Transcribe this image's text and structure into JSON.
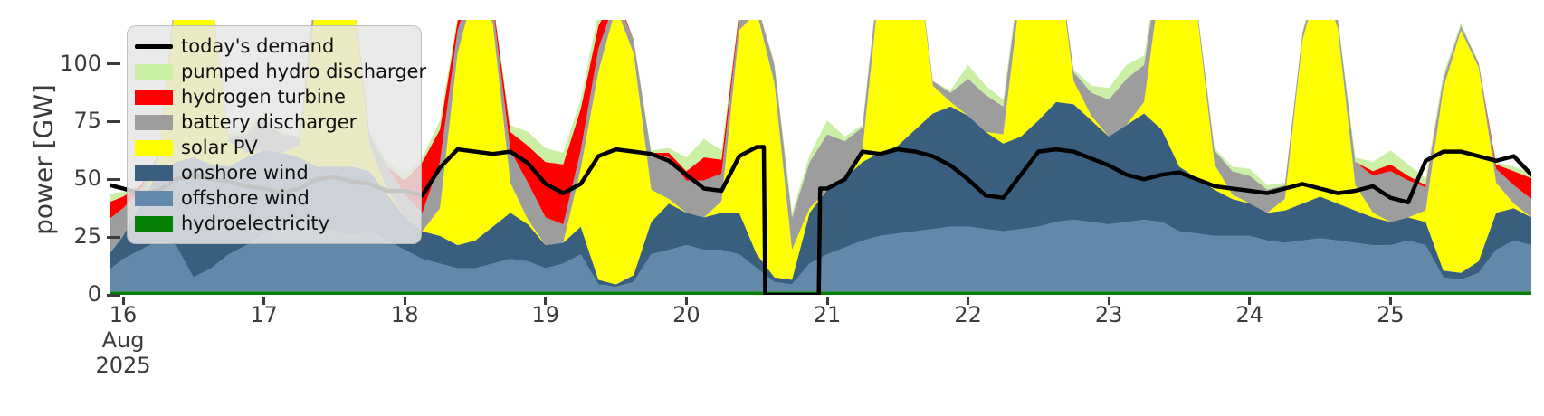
{
  "chart_data": {
    "type": "area",
    "title": "",
    "ylabel": "power [GW]",
    "grid": false,
    "legend_position": "upper left",
    "xlim": [
      15.91,
      26.0
    ],
    "ylim": [
      0,
      119
    ],
    "yticks": [
      0,
      25,
      50,
      75,
      100
    ],
    "xticks": [
      16,
      17,
      18,
      19,
      20,
      21,
      22,
      23,
      24,
      25
    ],
    "xtick_first_sublabels": [
      "Aug",
      "2025"
    ],
    "x": [
      15.875,
      16,
      16.125,
      16.25,
      16.375,
      16.5,
      16.625,
      16.75,
      16.875,
      17,
      17.125,
      17.25,
      17.375,
      17.5,
      17.625,
      17.75,
      17.875,
      18,
      18.125,
      18.25,
      18.375,
      18.5,
      18.625,
      18.75,
      18.875,
      19,
      19.125,
      19.25,
      19.375,
      19.5,
      19.625,
      19.75,
      19.875,
      20,
      20.125,
      20.25,
      20.375,
      20.5,
      20.625,
      20.75,
      20.875,
      21,
      21.125,
      21.25,
      21.375,
      21.5,
      21.625,
      21.75,
      21.875,
      22,
      22.125,
      22.25,
      22.375,
      22.5,
      22.625,
      22.75,
      22.875,
      23,
      23.125,
      23.25,
      23.375,
      23.5,
      23.625,
      23.75,
      23.875,
      24,
      24.125,
      24.25,
      24.375,
      24.5,
      24.625,
      24.75,
      24.875,
      25,
      25.125,
      25.25,
      25.375,
      25.5,
      25.625,
      25.75,
      25.875,
      26
    ],
    "series": [
      {
        "name": "hydroelectricity",
        "color": "#068006",
        "values": [
          1.5,
          1.5,
          1.5,
          1.5,
          1.5,
          1.5,
          1.5,
          1.5,
          1.5,
          1.5,
          1.5,
          1.5,
          1.5,
          1.5,
          1.5,
          1.5,
          1.5,
          1.5,
          1.5,
          1.5,
          1.5,
          1.5,
          1.5,
          1.5,
          1.5,
          1.5,
          1.5,
          1.5,
          1.5,
          1.5,
          1.5,
          1.5,
          1.5,
          1.5,
          1.5,
          1.5,
          1.5,
          1.5,
          1.5,
          1.5,
          1.5,
          1.5,
          1.5,
          1.5,
          1.5,
          1.5,
          1.5,
          1.5,
          1.5,
          1.5,
          1.5,
          1.5,
          1.5,
          1.5,
          1.5,
          1.5,
          1.5,
          1.5,
          1.5,
          1.5,
          1.5,
          1.5,
          1.5,
          1.5,
          1.5,
          1.5,
          1.5,
          1.5,
          1.5,
          1.5,
          1.5,
          1.5,
          1.5,
          1.5,
          1.5,
          1.5,
          1.5,
          1.5,
          1.5,
          1.5,
          1.5,
          1.5
        ]
      },
      {
        "name": "offshore wind",
        "color": "#6389aa",
        "values": [
          8,
          14,
          18,
          22,
          20,
          6,
          10,
          16,
          20,
          25,
          28,
          30,
          28,
          26,
          24,
          26,
          22,
          18,
          14,
          12,
          10,
          10,
          12,
          14,
          13,
          10,
          12,
          16,
          3,
          2,
          4,
          16,
          18,
          20,
          18,
          18,
          16,
          10,
          4,
          3,
          12,
          16,
          19,
          22,
          24,
          25,
          26,
          27,
          28,
          28,
          27,
          26,
          27,
          28,
          30,
          31,
          30,
          29,
          30,
          31,
          30,
          26,
          25,
          24,
          24,
          24,
          22,
          21,
          22,
          23,
          22,
          21,
          20,
          20,
          22,
          20,
          6,
          5,
          8,
          18,
          22,
          20
        ]
      },
      {
        "name": "onshore wind",
        "color": "#3a5f7e",
        "values": [
          6,
          10,
          20,
          30,
          36,
          52,
          45,
          38,
          38,
          36,
          32,
          28,
          26,
          28,
          30,
          26,
          20,
          14,
          12,
          12,
          10,
          12,
          16,
          20,
          16,
          10,
          9,
          12,
          2,
          1,
          3,
          14,
          20,
          14,
          14,
          16,
          18,
          6,
          2,
          2,
          22,
          28,
          30,
          34,
          36,
          38,
          44,
          50,
          52,
          48,
          42,
          38,
          40,
          46,
          52,
          50,
          44,
          38,
          42,
          46,
          40,
          28,
          24,
          20,
          16,
          14,
          12,
          14,
          16,
          18,
          16,
          14,
          12,
          10,
          10,
          10,
          3,
          3,
          5,
          16,
          14,
          12
        ]
      },
      {
        "name": "solar PV",
        "color": "#ffff00",
        "values": [
          0,
          0,
          0,
          5,
          71,
          95,
          76,
          11,
          2,
          0,
          0,
          5,
          75,
          100,
          80,
          12,
          2,
          0,
          0,
          12,
          83,
          110,
          88,
          13,
          2,
          0,
          0,
          25,
          90,
          120,
          96,
          14,
          2,
          0,
          0,
          5,
          79,
          105,
          84,
          13,
          2,
          0,
          0,
          5,
          75,
          100,
          80,
          12,
          2,
          0,
          0,
          4,
          64,
          85,
          68,
          10,
          2,
          0,
          0,
          5,
          68,
          90,
          72,
          11,
          2,
          0,
          0,
          5,
          71,
          95,
          76,
          11,
          2,
          0,
          0,
          5,
          79,
          105,
          84,
          13,
          2,
          0
        ]
      },
      {
        "name": "battery discharger",
        "color": "#9d9d9d",
        "values": [
          16,
          12,
          6,
          2,
          4,
          2,
          0,
          2,
          8,
          14,
          8,
          4,
          8,
          4,
          2,
          4,
          10,
          10,
          8,
          20,
          10,
          4,
          8,
          14,
          16,
          12,
          8,
          8,
          10,
          4,
          6,
          16,
          18,
          14,
          16,
          12,
          6,
          4,
          8,
          14,
          20,
          24,
          16,
          10,
          6,
          3,
          2,
          2,
          4,
          16,
          16,
          12,
          8,
          4,
          2,
          4,
          10,
          16,
          20,
          16,
          10,
          4,
          2,
          6,
          10,
          12,
          10,
          6,
          3,
          2,
          4,
          10,
          16,
          22,
          16,
          10,
          4,
          2,
          2,
          6,
          8,
          8
        ]
      },
      {
        "name": "hydrogen turbine",
        "color": "#ff0000",
        "values": [
          8,
          5,
          2,
          0,
          0,
          0,
          0,
          0,
          0,
          0,
          0,
          0,
          0,
          0,
          0,
          0,
          0,
          6,
          22,
          14,
          4,
          0,
          2,
          8,
          16,
          24,
          26,
          18,
          10,
          2,
          0,
          0,
          2,
          4,
          10,
          6,
          2,
          0,
          0,
          0,
          0,
          0,
          0,
          0,
          0,
          0,
          0,
          0,
          0,
          0,
          0,
          0,
          0,
          0,
          0,
          0,
          0,
          0,
          0,
          0,
          0,
          0,
          0,
          0,
          0,
          0,
          0,
          0,
          0,
          0,
          0,
          0,
          2,
          3,
          2,
          1,
          0,
          0,
          0,
          2,
          6,
          9
        ]
      },
      {
        "name": "pumped hydro discharger",
        "color": "#cbefa4",
        "values": [
          4,
          2,
          0,
          0,
          2,
          0,
          0,
          1,
          2,
          3,
          1,
          0,
          1,
          0,
          0,
          1,
          2,
          3,
          2,
          4,
          2,
          0,
          1,
          3,
          6,
          6,
          5,
          4,
          6,
          2,
          0,
          1,
          2,
          6,
          8,
          4,
          1,
          0,
          1,
          2,
          3,
          6,
          2,
          1,
          1,
          0,
          0,
          0,
          1,
          6,
          4,
          3,
          2,
          1,
          0,
          1,
          3,
          5,
          6,
          4,
          2,
          1,
          0,
          1,
          2,
          3,
          2,
          1,
          1,
          0,
          1,
          2,
          4,
          6,
          5,
          3,
          2,
          1,
          0,
          1,
          2,
          2
        ]
      }
    ],
    "demand_line": {
      "name": "today's demand",
      "color": "#000000",
      "x": [
        15.875,
        16,
        16.125,
        16.25,
        16.375,
        16.5,
        16.625,
        16.75,
        16.875,
        17,
        17.125,
        17.25,
        17.375,
        17.5,
        17.625,
        17.75,
        17.875,
        18,
        18.125,
        18.25,
        18.375,
        18.5,
        18.625,
        18.75,
        18.875,
        19,
        19.125,
        19.25,
        19.375,
        19.5,
        19.625,
        19.75,
        19.875,
        20,
        20.125,
        20.25,
        20.375,
        20.5,
        20.55,
        20.56,
        20.94,
        20.95,
        21,
        21.125,
        21.25,
        21.375,
        21.5,
        21.625,
        21.75,
        21.875,
        22,
        22.125,
        22.25,
        22.375,
        22.5,
        22.625,
        22.75,
        22.875,
        23,
        23.125,
        23.25,
        23.375,
        23.5,
        23.625,
        23.75,
        23.875,
        24,
        24.125,
        24.25,
        24.375,
        24.5,
        24.625,
        24.75,
        24.875,
        25,
        25.125,
        25.25,
        25.375,
        25.5,
        25.625,
        25.75,
        25.875,
        26
      ],
      "values": [
        48,
        46,
        44,
        45,
        50,
        52,
        50,
        49,
        47,
        46,
        44,
        46,
        50,
        51,
        49,
        48,
        45,
        45,
        43,
        55,
        63,
        62,
        61,
        62,
        57,
        48,
        44,
        48,
        60,
        63,
        62,
        61,
        58,
        52,
        46,
        45,
        60,
        64,
        64,
        0,
        0,
        46,
        46,
        50,
        62,
        61,
        63,
        62,
        60,
        56,
        50,
        43,
        42,
        52,
        62,
        63,
        62,
        59,
        56,
        52,
        50,
        52,
        53,
        50,
        47,
        46,
        45,
        44,
        46,
        48,
        46,
        44,
        45,
        47,
        42,
        40,
        58,
        62,
        62,
        60,
        58,
        60,
        52
      ]
    }
  },
  "legend": {
    "entries": [
      {
        "label": "today's demand",
        "type": "line",
        "color": "#000000"
      },
      {
        "label": "pumped hydro discharger",
        "type": "patch",
        "color": "#cbefa4"
      },
      {
        "label": "hydrogen turbine",
        "type": "patch",
        "color": "#ff0000"
      },
      {
        "label": "battery discharger",
        "type": "patch",
        "color": "#9d9d9d"
      },
      {
        "label": "solar PV",
        "type": "patch",
        "color": "#ffff00"
      },
      {
        "label": "onshore wind",
        "type": "patch",
        "color": "#3a5f7e"
      },
      {
        "label": "offshore wind",
        "type": "patch",
        "color": "#6389aa"
      },
      {
        "label": "hydroelectricity",
        "type": "patch",
        "color": "#068006"
      }
    ]
  },
  "axes": {
    "tick_color": "#3b3b3b",
    "text_color": "#3b3b3b"
  }
}
